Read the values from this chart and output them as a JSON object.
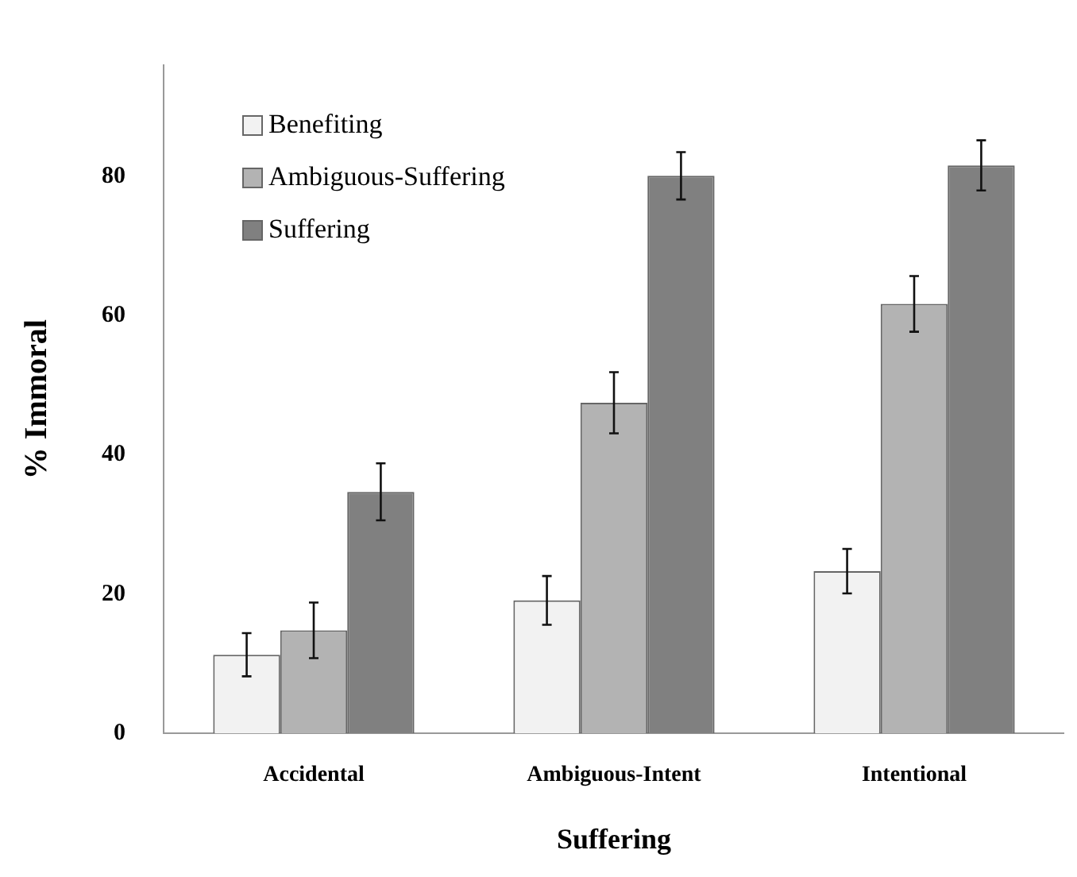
{
  "chart_data": {
    "type": "bar",
    "xlabel": "Suffering",
    "ylabel": "% Immoral",
    "categories": [
      "Accidental",
      "Ambiguous-Intent",
      "Intentional"
    ],
    "series": [
      {
        "name": "Benefiting",
        "color": "#f2f2f2",
        "values": [
          11.3,
          19.1,
          23.3
        ],
        "errors": [
          3.1,
          3.5,
          3.2
        ]
      },
      {
        "name": "Ambiguous-Suffering",
        "color": "#b3b3b3",
        "values": [
          14.8,
          47.5,
          61.7
        ],
        "errors": [
          4,
          4.4,
          4
        ]
      },
      {
        "name": "Suffering",
        "color": "#808080",
        "values": [
          34.7,
          80.1,
          81.6
        ],
        "errors": [
          4.1,
          3.4,
          3.6
        ]
      }
    ],
    "ylim": [
      0,
      96
    ],
    "yticks": [
      0,
      20,
      40,
      60,
      80
    ],
    "grid": false,
    "legend": "top left"
  }
}
